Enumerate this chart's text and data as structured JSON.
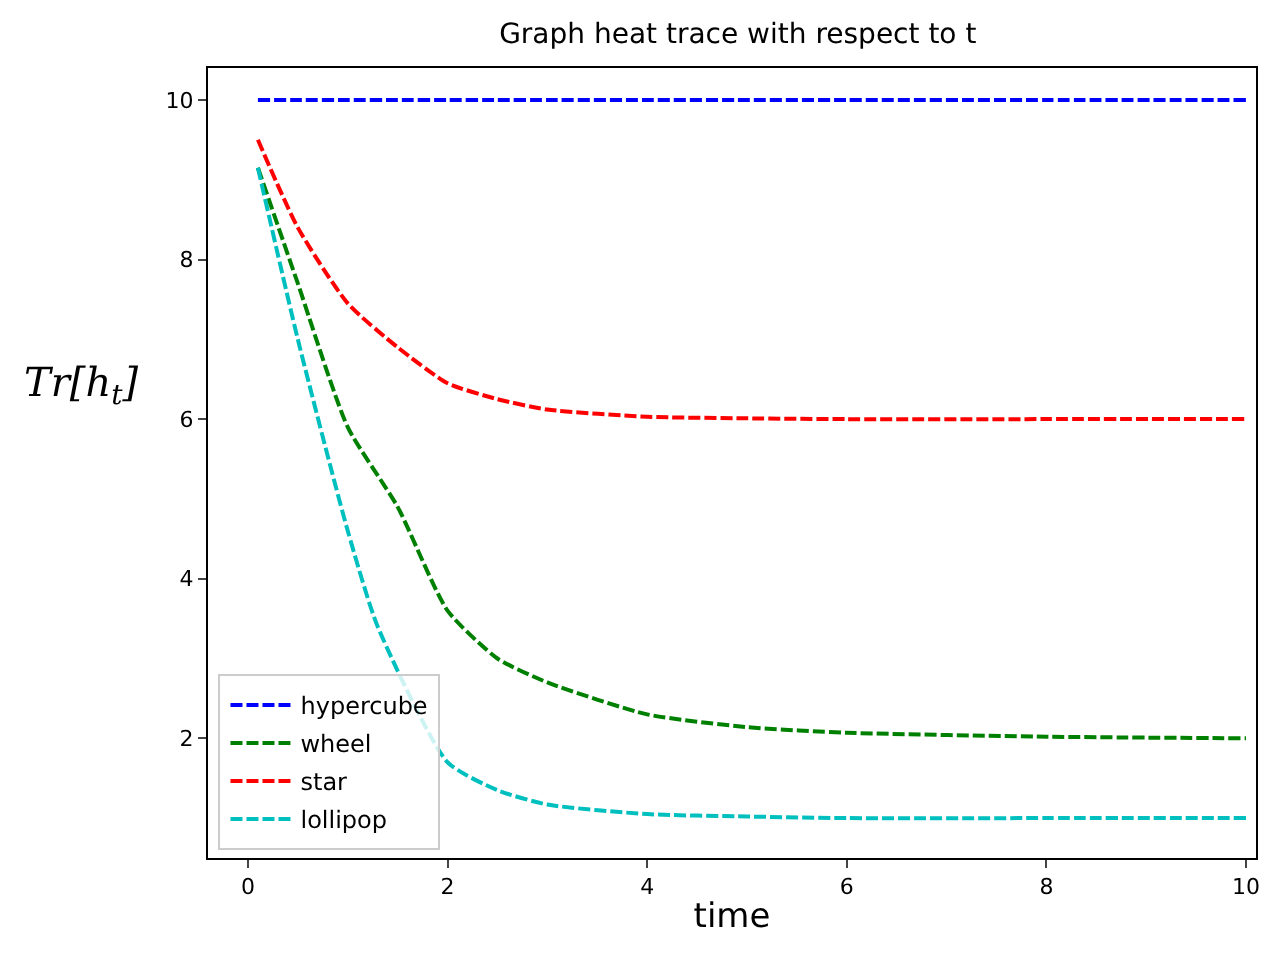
{
  "chart_data": {
    "type": "line",
    "title": "Graph heat trace with respect to t",
    "xlabel": "time",
    "ylabel": "Tr[h$_{t}$]",
    "x": [
      0.1,
      0.5,
      1,
      1.5,
      2,
      2.5,
      3,
      4,
      5,
      6,
      8,
      10
    ],
    "series": [
      {
        "name": "hypercube",
        "color": "#0000ff",
        "values": [
          10,
          10,
          10,
          10,
          10,
          10,
          10,
          10,
          10,
          10,
          10,
          10
        ]
      },
      {
        "name": "wheel",
        "color": "#008000",
        "values": [
          9.15,
          7.7,
          5.9,
          4.9,
          3.6,
          3.0,
          2.7,
          2.3,
          2.14,
          2.07,
          2.02,
          2.0
        ]
      },
      {
        "name": "star",
        "color": "#ff0000",
        "values": [
          9.5,
          8.4,
          7.45,
          6.9,
          6.45,
          6.25,
          6.12,
          6.03,
          6.01,
          6.0,
          6.0,
          6.0
        ]
      },
      {
        "name": "lollipop",
        "color": "#00bfbf",
        "x": [
          0.1,
          0.5,
          1,
          1.3,
          2,
          2.5,
          3,
          4,
          5,
          6,
          8,
          10
        ],
        "values": [
          9.15,
          7.0,
          4.6,
          3.4,
          1.7,
          1.35,
          1.17,
          1.05,
          1.02,
          1.0,
          1.0,
          1.0
        ]
      }
    ],
    "xlim": [
      -0.4,
      10.1
    ],
    "xticks": [
      0,
      2,
      4,
      6,
      8,
      10
    ],
    "ylim": [
      0.5,
      10.4
    ],
    "yticks": [
      2,
      4,
      6,
      8,
      10
    ],
    "line_style": "dashed",
    "legend": "bottom left"
  }
}
